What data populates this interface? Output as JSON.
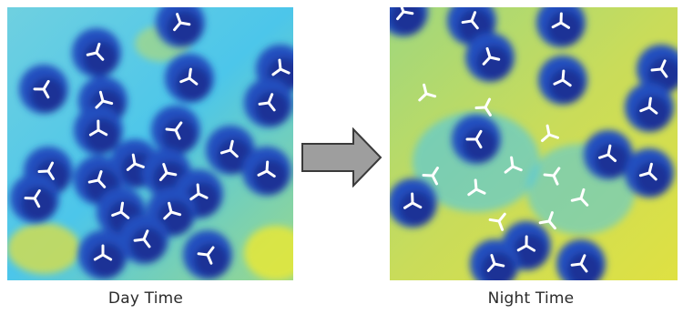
{
  "captions": {
    "day": "Day Time",
    "night": "Night Time"
  },
  "colors": {
    "field_yellow": "#e0e23a",
    "field_cyan": "#3fc4ea",
    "wake_blue": "#2450bf",
    "wake_core": "#1c2a8c",
    "turbine": "#ffffff",
    "arrow_fill": "#9e9e9e",
    "arrow_stroke": "#3a3a3a"
  },
  "icons": {
    "turbine": "wind-turbine-icon",
    "arrow": "right-arrow-icon"
  }
}
